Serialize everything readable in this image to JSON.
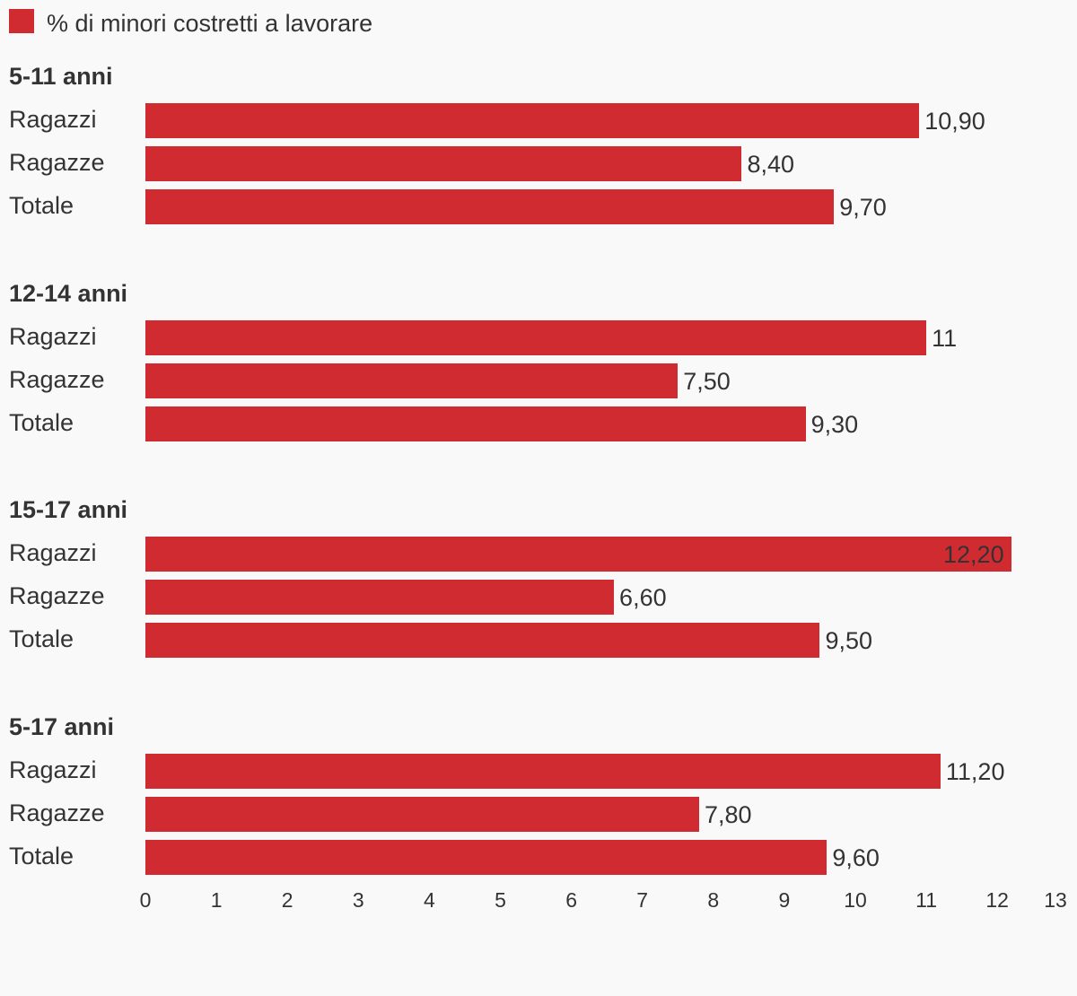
{
  "colors": {
    "bar": "#d02b31",
    "text": "#333333",
    "background": "#f9f9f9"
  },
  "chart_data": {
    "type": "bar",
    "orientation": "horizontal",
    "legend": {
      "position": "top-left",
      "entries": [
        "% di minori costretti a lavorare"
      ]
    },
    "series": [
      {
        "name": "% di minori costretti a lavorare"
      }
    ],
    "groups": [
      {
        "title": "5-11 anni",
        "rows": [
          {
            "label": "Ragazzi",
            "value": 10.9,
            "value_label": "10,90"
          },
          {
            "label": "Ragazze",
            "value": 8.4,
            "value_label": "8,40"
          },
          {
            "label": "Totale",
            "value": 9.7,
            "value_label": "9,70"
          }
        ]
      },
      {
        "title": "12-14 anni",
        "rows": [
          {
            "label": "Ragazzi",
            "value": 11,
            "value_label": "11"
          },
          {
            "label": "Ragazze",
            "value": 7.5,
            "value_label": "7,50"
          },
          {
            "label": "Totale",
            "value": 9.3,
            "value_label": "9,30"
          }
        ]
      },
      {
        "title": "15-17 anni",
        "rows": [
          {
            "label": "Ragazzi",
            "value": 12.2,
            "value_label": "12,20"
          },
          {
            "label": "Ragazze",
            "value": 6.6,
            "value_label": "6,60"
          },
          {
            "label": "Totale",
            "value": 9.5,
            "value_label": "9,50"
          }
        ]
      },
      {
        "title": "5-17 anni",
        "rows": [
          {
            "label": "Ragazzi",
            "value": 11.2,
            "value_label": "11,20"
          },
          {
            "label": "Ragazze",
            "value": 7.8,
            "value_label": "7,80"
          },
          {
            "label": "Totale",
            "value": 9.6,
            "value_label": "9,60"
          }
        ]
      }
    ],
    "xlim": [
      0,
      13
    ],
    "x_ticks": [
      "0",
      "1",
      "2",
      "3",
      "4",
      "5",
      "6",
      "7",
      "8",
      "9",
      "10",
      "11",
      "12",
      "13"
    ],
    "grid": false
  }
}
